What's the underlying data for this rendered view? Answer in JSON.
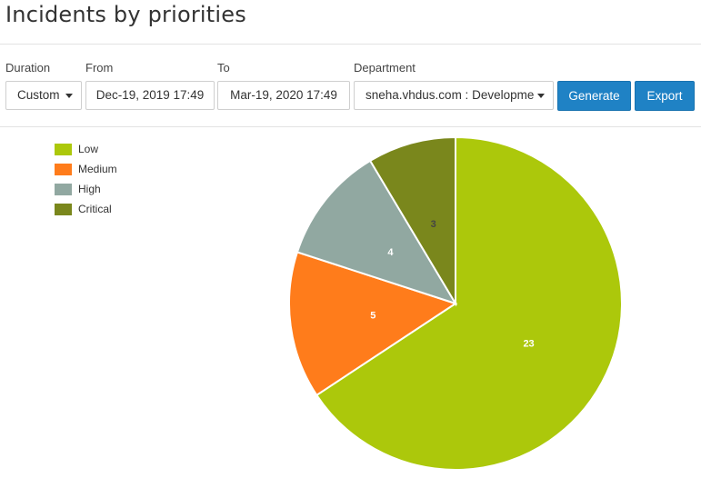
{
  "title": "Incidents by priorities",
  "filters": {
    "duration": {
      "label": "Duration",
      "value": "Custom"
    },
    "from": {
      "label": "From",
      "value": "Dec-19, 2019 17:49"
    },
    "to": {
      "label": "To",
      "value": "Mar-19, 2020 17:49"
    },
    "department": {
      "label": "Department",
      "value": "sneha.vhdus.com : Developme"
    }
  },
  "actions": {
    "generate": "Generate",
    "export": "Export"
  },
  "colors": {
    "low": "#acc80b",
    "medium": "#ff7c1b",
    "high": "#91a8a1",
    "critical": "#7a871c",
    "button": "#1f82c5"
  },
  "chart_data": {
    "type": "pie",
    "title": "Incidents by priorities",
    "legend_position": "top-left",
    "categories": [
      "Low",
      "Medium",
      "High",
      "Critical"
    ],
    "values": [
      23,
      5,
      4,
      3
    ],
    "colors": [
      "#acc80b",
      "#ff7c1b",
      "#91a8a1",
      "#7a871c"
    ],
    "label_colors": [
      "#ffffff",
      "#ffffff",
      "#ffffff",
      "#444444"
    ]
  }
}
